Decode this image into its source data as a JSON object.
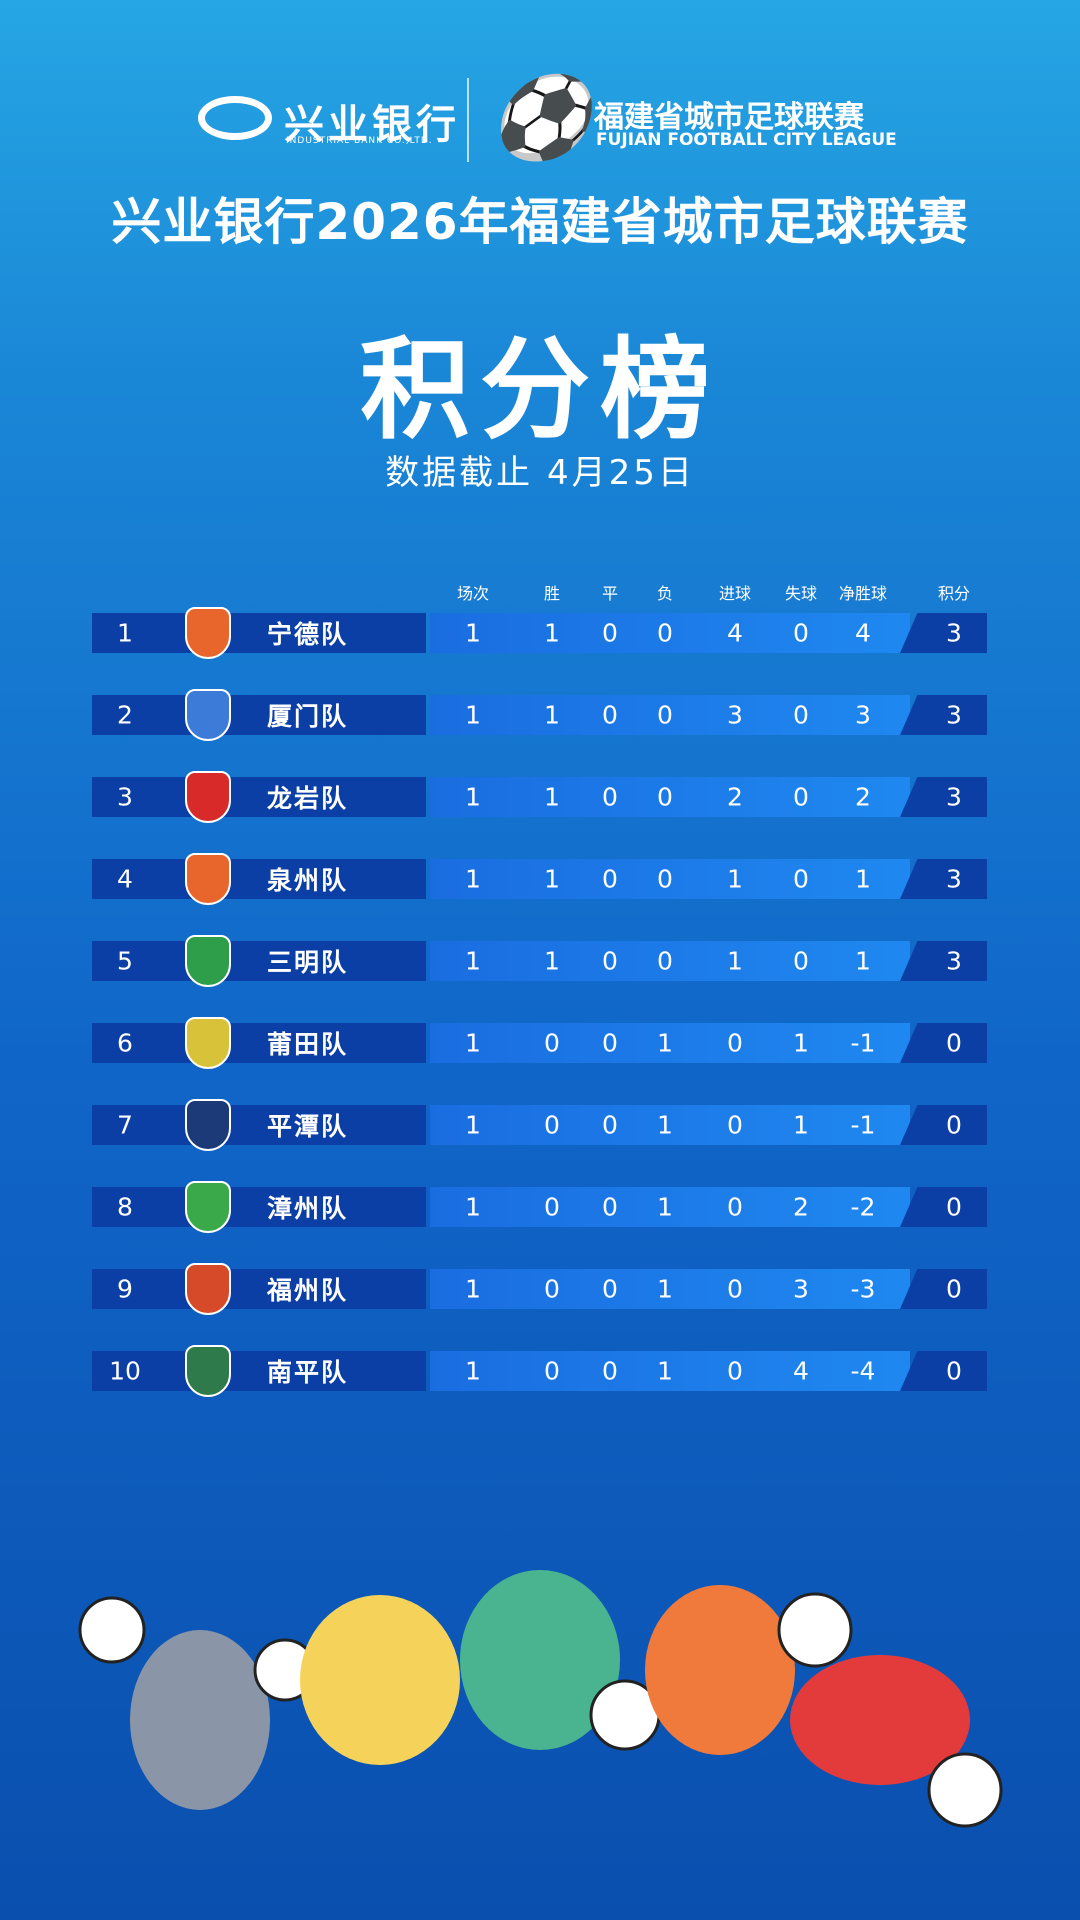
{
  "logos": {
    "bank": "兴业银行",
    "bank_en": "INDUSTRIAL BANK CO.,LTD.",
    "league": "福建省城市足球联赛",
    "league_en": "FUJIAN FOOTBALL CITY LEAGUE"
  },
  "header": {
    "title": "兴业银行2026年福建省城市足球联赛",
    "heading": "积分榜",
    "subtitle": "数据截止 4月25日"
  },
  "table": {
    "columns": [
      "场次",
      "胜",
      "平",
      "负",
      "进球",
      "失球",
      "净胜球",
      "积分"
    ],
    "rows": [
      [
        1,
        "宁德队",
        1,
        1,
        0,
        0,
        4,
        0,
        4,
        3
      ],
      [
        2,
        "厦门队",
        1,
        1,
        0,
        0,
        3,
        0,
        3,
        3
      ],
      [
        3,
        "龙岩队",
        1,
        1,
        0,
        0,
        2,
        0,
        2,
        3
      ],
      [
        4,
        "泉州队",
        1,
        1,
        0,
        0,
        1,
        0,
        1,
        3
      ],
      [
        5,
        "三明队",
        1,
        1,
        0,
        0,
        1,
        0,
        1,
        3
      ],
      [
        6,
        "莆田队",
        1,
        0,
        0,
        1,
        0,
        1,
        -1,
        0
      ],
      [
        7,
        "平潭队",
        1,
        0,
        0,
        1,
        0,
        1,
        -1,
        0
      ],
      [
        8,
        "漳州队",
        1,
        0,
        0,
        1,
        0,
        2,
        -2,
        0
      ],
      [
        9,
        "福州队",
        1,
        0,
        0,
        1,
        0,
        3,
        -3,
        0
      ],
      [
        10,
        "南平队",
        1,
        0,
        0,
        1,
        0,
        4,
        -4,
        0
      ]
    ]
  }
}
